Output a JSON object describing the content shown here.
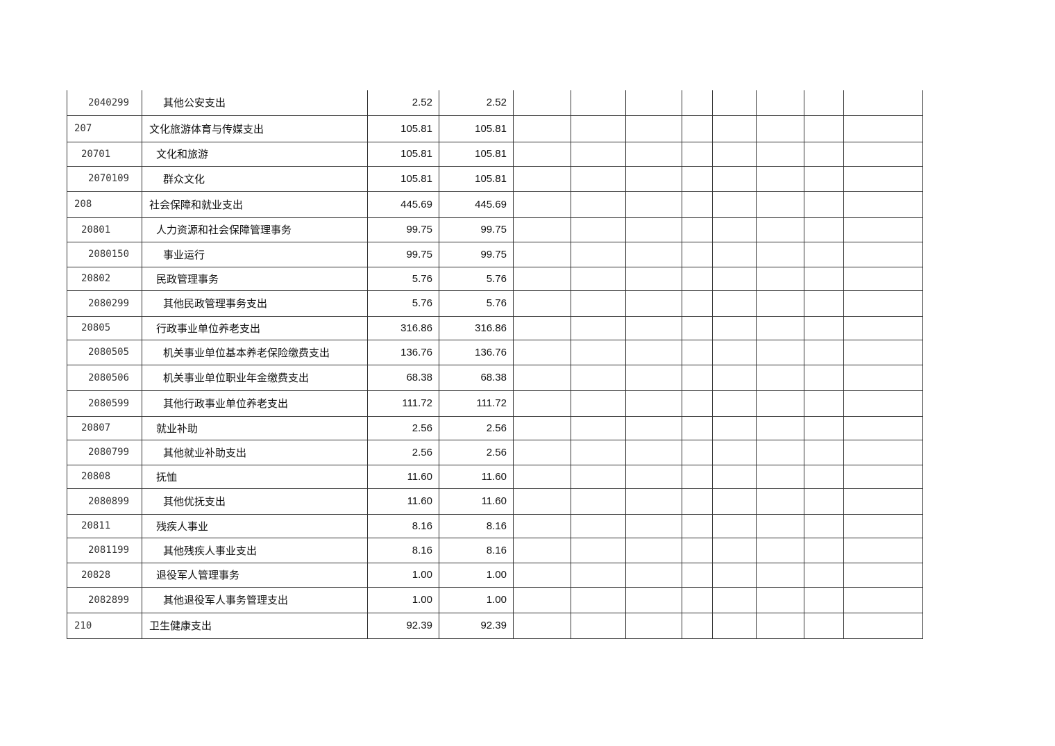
{
  "rows": [
    {
      "code": "2040299",
      "name": "其他公安支出",
      "total": "2.52",
      "basic": "2.52",
      "level": 3
    },
    {
      "code": "207",
      "name": "文化旅游体育与传媒支出",
      "total": "105.81",
      "basic": "105.81",
      "level": 1
    },
    {
      "code": "20701",
      "name": "文化和旅游",
      "total": "105.81",
      "basic": "105.81",
      "level": 2
    },
    {
      "code": "2070109",
      "name": "群众文化",
      "total": "105.81",
      "basic": "105.81",
      "level": 3
    },
    {
      "code": "208",
      "name": "社会保障和就业支出",
      "total": "445.69",
      "basic": "445.69",
      "level": 1
    },
    {
      "code": "20801",
      "name": "人力资源和社会保障管理事务",
      "total": "99.75",
      "basic": "99.75",
      "level": 2
    },
    {
      "code": "2080150",
      "name": "事业运行",
      "total": "99.75",
      "basic": "99.75",
      "level": 3
    },
    {
      "code": "20802",
      "name": "民政管理事务",
      "total": "5.76",
      "basic": "5.76",
      "level": 2
    },
    {
      "code": "2080299",
      "name": "其他民政管理事务支出",
      "total": "5.76",
      "basic": "5.76",
      "level": 3
    },
    {
      "code": "20805",
      "name": "行政事业单位养老支出",
      "total": "316.86",
      "basic": "316.86",
      "level": 2
    },
    {
      "code": "2080505",
      "name": "机关事业单位基本养老保险缴费支出",
      "total": "136.76",
      "basic": "136.76",
      "level": 3
    },
    {
      "code": "2080506",
      "name": "机关事业单位职业年金缴费支出",
      "total": "68.38",
      "basic": "68.38",
      "level": 3
    },
    {
      "code": "2080599",
      "name": "其他行政事业单位养老支出",
      "total": "111.72",
      "basic": "111.72",
      "level": 3
    },
    {
      "code": "20807",
      "name": "就业补助",
      "total": "2.56",
      "basic": "2.56",
      "level": 2
    },
    {
      "code": "2080799",
      "name": "其他就业补助支出",
      "total": "2.56",
      "basic": "2.56",
      "level": 3
    },
    {
      "code": "20808",
      "name": "抚恤",
      "total": "11.60",
      "basic": "11.60",
      "level": 2
    },
    {
      "code": "2080899",
      "name": "其他优抚支出",
      "total": "11.60",
      "basic": "11.60",
      "level": 3
    },
    {
      "code": "20811",
      "name": "残疾人事业",
      "total": "8.16",
      "basic": "8.16",
      "level": 2
    },
    {
      "code": "2081199",
      "name": "其他残疾人事业支出",
      "total": "8.16",
      "basic": "8.16",
      "level": 3
    },
    {
      "code": "20828",
      "name": "退役军人管理事务",
      "total": "1.00",
      "basic": "1.00",
      "level": 2
    },
    {
      "code": "2082899",
      "name": "其他退役军人事务管理支出",
      "total": "1.00",
      "basic": "1.00",
      "level": 3
    },
    {
      "code": "210",
      "name": "卫生健康支出",
      "total": "92.39",
      "basic": "92.39",
      "level": 1
    }
  ]
}
